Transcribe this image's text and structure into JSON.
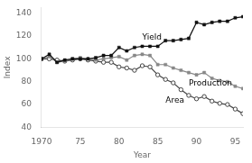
{
  "chart_data": {
    "type": "line",
    "xlabel": "Year",
    "ylabel": "Index",
    "x": [
      1970,
      1971,
      1972,
      1973,
      1974,
      1975,
      1976,
      1977,
      1978,
      1979,
      1980,
      1981,
      1982,
      1983,
      1984,
      1985,
      1986,
      1987,
      1988,
      1989,
      1990,
      1991,
      1992,
      1993,
      1994,
      1995,
      1996
    ],
    "series": [
      {
        "name": "Yield",
        "color": "#111111",
        "marker": "square",
        "values": [
          100,
          104,
          97,
          99,
          100,
          100,
          100,
          101,
          103,
          103,
          110,
          107,
          110,
          111,
          111,
          111,
          116,
          116,
          117,
          118,
          132,
          130,
          132,
          133,
          133,
          136,
          137
        ]
      },
      {
        "name": "Production",
        "color": "#888888",
        "marker": "square",
        "values": [
          100,
          102,
          97,
          98,
          100,
          101,
          100,
          99,
          100,
          101,
          102,
          99,
          103,
          104,
          103,
          95,
          95,
          92,
          90,
          88,
          86,
          88,
          83,
          81,
          80,
          76,
          74
        ]
      },
      {
        "name": "Area",
        "color": "#444444",
        "marker": "open_circle",
        "values": [
          100,
          100,
          99,
          98,
          99,
          100,
          99,
          98,
          97,
          97,
          93,
          92,
          90,
          94,
          93,
          86,
          82,
          79,
          73,
          68,
          65,
          67,
          63,
          61,
          60,
          56,
          52
        ]
      }
    ],
    "xlim": [
      1970,
      1996
    ],
    "ylim": [
      40,
      145
    ],
    "xticks": [
      1970,
      {
        "value": 1975,
        "label": "75"
      },
      {
        "value": 1980,
        "label": "80"
      },
      {
        "value": 1985,
        "label": "85"
      },
      {
        "value": 1990,
        "label": "90"
      },
      {
        "value": 1995,
        "label": "95"
      }
    ],
    "yticks": [
      40,
      60,
      80,
      100,
      120,
      140
    ],
    "grid": false,
    "annotations": [
      {
        "text": "Yield",
        "x": 1983,
        "y": 117
      },
      {
        "text": "Production",
        "x": 1989,
        "y": 77
      },
      {
        "text": "Area",
        "x": 1986,
        "y": 62
      }
    ]
  }
}
